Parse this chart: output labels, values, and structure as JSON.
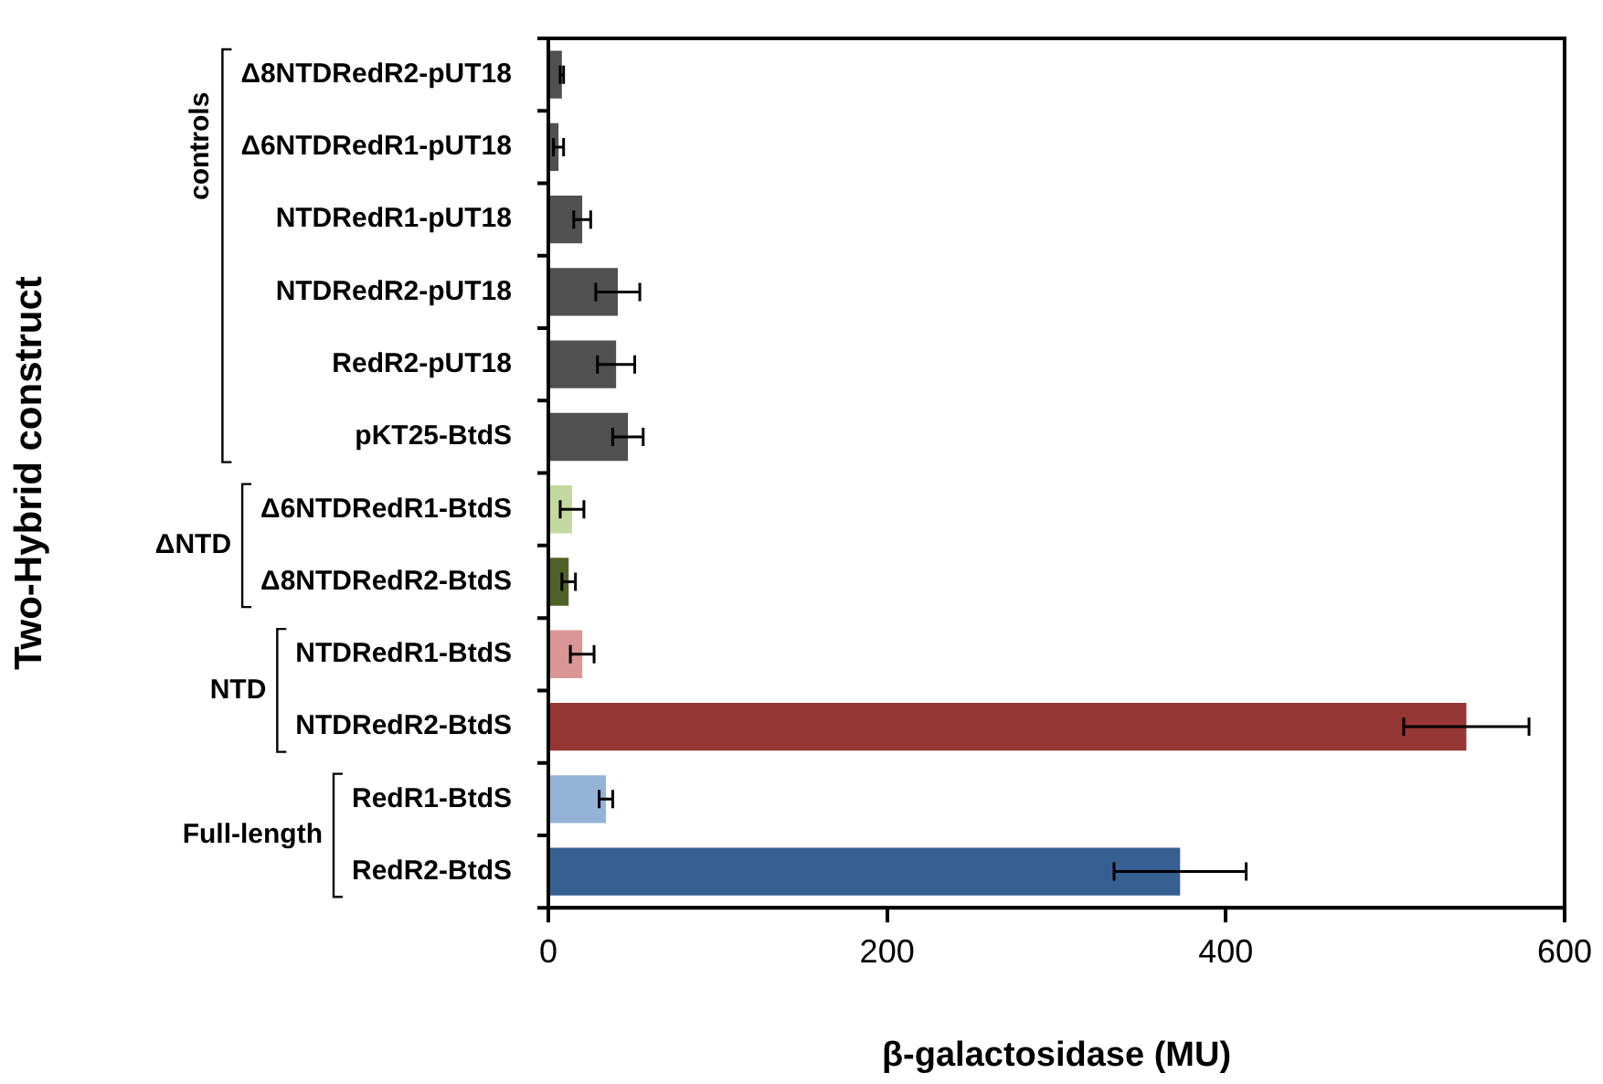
{
  "chart_data": {
    "type": "bar",
    "orientation": "horizontal",
    "xlabel": "β-galactosidase (MU)",
    "ylabel": "Two-Hybrid construct",
    "categories": [
      "Δ8NTDRedR2-pUT18",
      "Δ6NTDRedR1-pUT18",
      "NTDRedR1-pUT18",
      "NTDRedR2-pUT18",
      "RedR2-pUT18",
      "pKT25-BtdS",
      "Δ6NTDRedR1-BtdS",
      "Δ8NTDRedR2-BtdS",
      "NTDRedR1-BtdS",
      "NTDRedR2-BtdS",
      "RedR1-BtdS",
      "RedR2-BtdS"
    ],
    "values": [
      8,
      6,
      20,
      41,
      40,
      47,
      14,
      12,
      20,
      542,
      34,
      373
    ],
    "errors": [
      1,
      3,
      5,
      13,
      11,
      9,
      7,
      4,
      7,
      37,
      4,
      39
    ],
    "colors": [
      "#505050",
      "#505050",
      "#505050",
      "#505050",
      "#505050",
      "#505050",
      "#c4d9a0",
      "#4f6228",
      "#d99694",
      "#953735",
      "#95b3d7",
      "#376092"
    ],
    "xlim": [
      0,
      600
    ],
    "xticks": [
      0,
      200,
      400,
      600
    ],
    "annotations": [
      "controls",
      "ΔNTD",
      "NTD",
      "Full-length"
    ]
  }
}
